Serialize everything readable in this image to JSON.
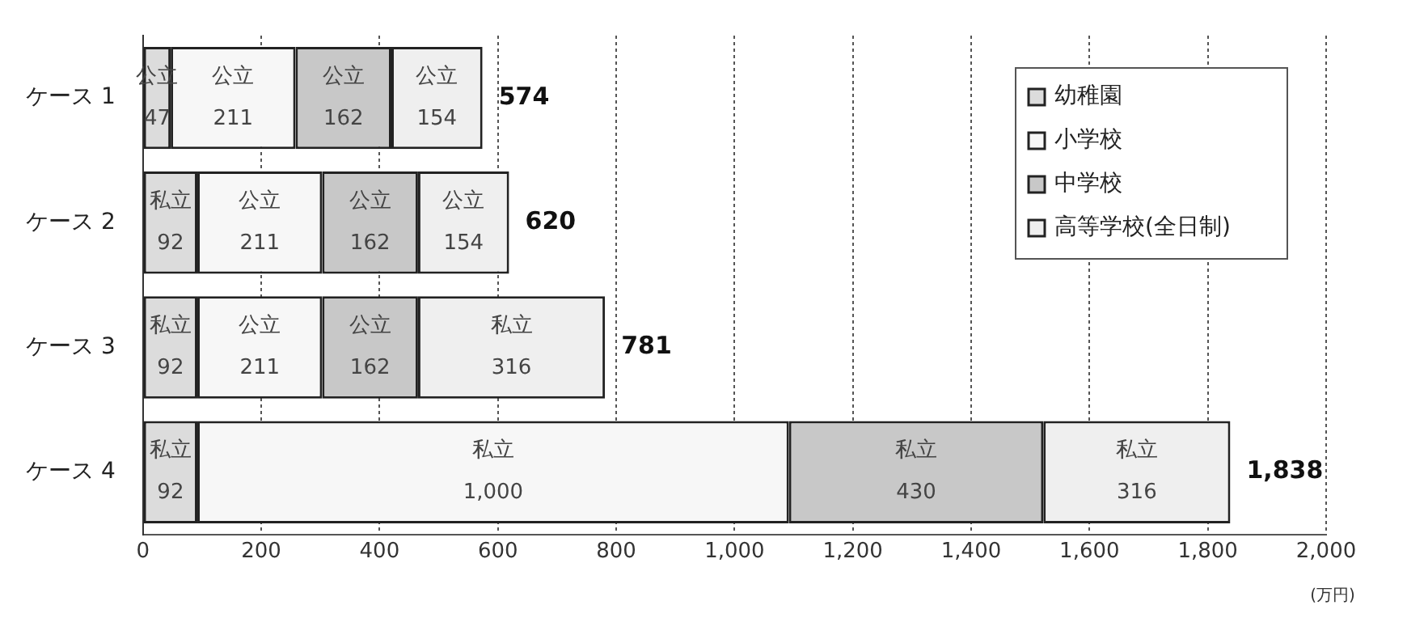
{
  "chart_data": {
    "type": "bar",
    "orientation": "horizontal",
    "stacked": true,
    "xlabel": "(万円)",
    "categories": [
      "ケース 1",
      "ケース 2",
      "ケース 3",
      "ケース 4"
    ],
    "series": [
      {
        "name": "幼稚園",
        "color": "#dcdcdc",
        "values": [
          47,
          92,
          92,
          92
        ],
        "value_labels": [
          "公立\n47",
          "私立\n92",
          "私立\n92",
          "私立\n92"
        ]
      },
      {
        "name": "小学校",
        "color": "#f7f7f7",
        "values": [
          211,
          211,
          211,
          1000
        ],
        "value_labels": [
          "公立\n211",
          "公立\n211",
          "公立\n211",
          "私立\n1,000"
        ]
      },
      {
        "name": "中学校",
        "color": "#c8c8c8",
        "values": [
          162,
          162,
          162,
          430
        ],
        "value_labels": [
          "公立\n162",
          "公立\n162",
          "公立\n162",
          "私立\n430"
        ]
      },
      {
        "name": "高等学校(全日制)",
        "color": "#efefef",
        "values": [
          154,
          154,
          316,
          316
        ],
        "value_labels": [
          "公立\n154",
          "公立\n154",
          "私立\n316",
          "私立\n316"
        ]
      }
    ],
    "totals": [
      "574",
      "620",
      "781",
      "1,838"
    ],
    "xlim": [
      0,
      2000
    ],
    "xticks": [
      {
        "value": 0,
        "label": "0"
      },
      {
        "value": 200,
        "label": "200"
      },
      {
        "value": 400,
        "label": "400"
      },
      {
        "value": 600,
        "label": "600"
      },
      {
        "value": 800,
        "label": "800"
      },
      {
        "value": 1000,
        "label": "1,000"
      },
      {
        "value": 1200,
        "label": "1,200"
      },
      {
        "value": 1400,
        "label": "1,400"
      },
      {
        "value": 1600,
        "label": "1,600"
      },
      {
        "value": 1800,
        "label": "1,800"
      },
      {
        "value": 2000,
        "label": "2,000"
      }
    ],
    "grid": "x",
    "legend": "top right"
  }
}
